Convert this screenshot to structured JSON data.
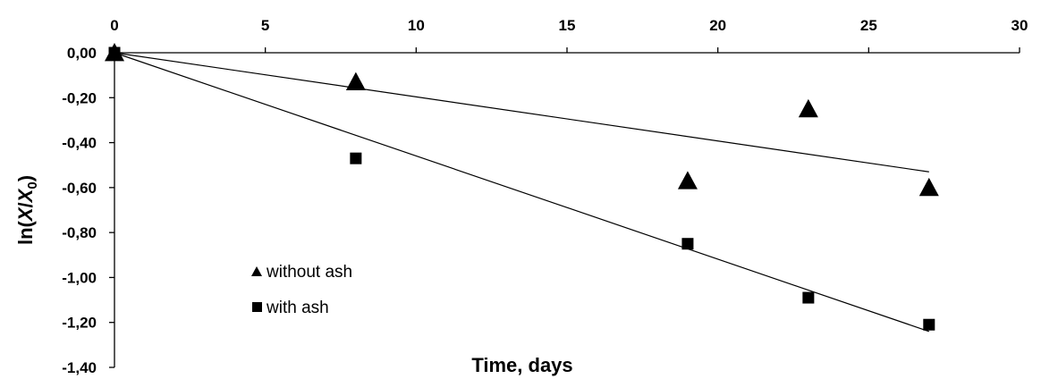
{
  "chart_data": {
    "type": "scatter",
    "xlabel": "Time, days",
    "ylabel_parts": [
      "ln(",
      "X",
      "/",
      "X",
      "0",
      ")"
    ],
    "xlim": [
      0,
      30
    ],
    "ylim": [
      -1.4,
      0
    ],
    "x_ticks": [
      0,
      5,
      10,
      15,
      20,
      25,
      30
    ],
    "x_tick_labels": [
      "0",
      "5",
      "10",
      "15",
      "20",
      "25",
      "30"
    ],
    "y_ticks": [
      0,
      -0.2,
      -0.4,
      -0.6,
      -0.8,
      -1.0,
      -1.2,
      -1.4
    ],
    "y_tick_labels": [
      "0,00",
      "-0,20",
      "-0,40",
      "-0,60",
      "-0,80",
      "-1,00",
      "-1,20",
      "-1,40"
    ],
    "grid": false,
    "legend_position": "lower-left inside",
    "series": [
      {
        "name": "without ash",
        "marker": "triangle",
        "color": "#000000",
        "x": [
          0,
          8,
          19,
          23,
          27
        ],
        "y": [
          0,
          -0.13,
          -0.57,
          -0.25,
          -0.6
        ],
        "trendline": [
          [
            0,
            0
          ],
          [
            27,
            -0.53
          ]
        ]
      },
      {
        "name": "with ash",
        "marker": "square",
        "color": "#000000",
        "x": [
          0,
          8,
          19,
          23,
          27
        ],
        "y": [
          0,
          -0.47,
          -0.85,
          -1.09,
          -1.21
        ],
        "trendline": [
          [
            0,
            0
          ],
          [
            27,
            -1.24
          ]
        ]
      }
    ]
  }
}
